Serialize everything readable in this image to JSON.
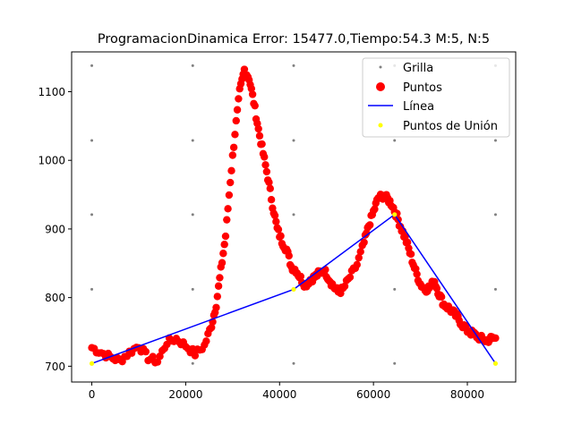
{
  "chart_data": {
    "type": "scatter",
    "title": "ProgramacionDinamica Error: 15477.0,Tiempo:54.3  M:5, N:5",
    "xlabel": "",
    "ylabel": "",
    "xlim": [
      -4300,
      90300
    ],
    "ylim": [
      677,
      1158
    ],
    "xticks": [
      0,
      20000,
      40000,
      60000,
      80000
    ],
    "xtick_labels": [
      "0",
      "20000",
      "40000",
      "60000",
      "80000"
    ],
    "yticks": [
      700,
      800,
      900,
      1000,
      1100
    ],
    "ytick_labels": [
      "700",
      "800",
      "900",
      "1000",
      "1100"
    ],
    "legend": {
      "placement": "top-right",
      "entries": [
        "Grilla",
        "Puntos",
        "Línea",
        "Puntos de Unión"
      ]
    },
    "colors": {
      "grid": "#808080",
      "points": "#ff0000",
      "line": "#0000ff",
      "union": "#ffff00"
    },
    "grilla": {
      "x": [
        0,
        21500,
        43000,
        64500,
        86000
      ],
      "y": [
        704,
        812,
        921,
        1029,
        1138
      ]
    },
    "puntos_curve": [
      [
        0,
        727
      ],
      [
        2000,
        720
      ],
      [
        4000,
        713
      ],
      [
        6000,
        708
      ],
      [
        8000,
        720
      ],
      [
        10000,
        730
      ],
      [
        12000,
        712
      ],
      [
        14000,
        707
      ],
      [
        16000,
        735
      ],
      [
        18000,
        740
      ],
      [
        20000,
        730
      ],
      [
        22000,
        718
      ],
      [
        24000,
        730
      ],
      [
        25500,
        760
      ],
      [
        26500,
        790
      ],
      [
        27500,
        840
      ],
      [
        28500,
        890
      ],
      [
        29500,
        970
      ],
      [
        30500,
        1040
      ],
      [
        31500,
        1100
      ],
      [
        32500,
        1132
      ],
      [
        33500,
        1120
      ],
      [
        34500,
        1085
      ],
      [
        35500,
        1045
      ],
      [
        36500,
        1010
      ],
      [
        37500,
        975
      ],
      [
        38500,
        935
      ],
      [
        39500,
        900
      ],
      [
        40500,
        882
      ],
      [
        41500,
        870
      ],
      [
        42500,
        845
      ],
      [
        43500,
        840
      ],
      [
        44500,
        828
      ],
      [
        45500,
        818
      ],
      [
        46500,
        826
      ],
      [
        47500,
        830
      ],
      [
        48500,
        836
      ],
      [
        49500,
        840
      ],
      [
        50500,
        828
      ],
      [
        51500,
        816
      ],
      [
        52500,
        808
      ],
      [
        53500,
        812
      ],
      [
        55000,
        830
      ],
      [
        56500,
        848
      ],
      [
        58000,
        880
      ],
      [
        59000,
        905
      ],
      [
        60000,
        925
      ],
      [
        61000,
        945
      ],
      [
        62000,
        948
      ],
      [
        63000,
        944
      ],
      [
        64000,
        935
      ],
      [
        65000,
        918
      ],
      [
        66000,
        900
      ],
      [
        67000,
        882
      ],
      [
        68000,
        860
      ],
      [
        69000,
        838
      ],
      [
        70000,
        820
      ],
      [
        71000,
        812
      ],
      [
        72000,
        815
      ],
      [
        73000,
        824
      ],
      [
        74000,
        805
      ],
      [
        75000,
        790
      ],
      [
        76000,
        785
      ],
      [
        77000,
        778
      ],
      [
        78000,
        770
      ],
      [
        79000,
        760
      ],
      [
        80000,
        752
      ],
      [
        81000,
        748
      ],
      [
        82000,
        744
      ],
      [
        83000,
        740
      ],
      [
        84000,
        737
      ],
      [
        85000,
        740
      ],
      [
        86000,
        741
      ]
    ],
    "linea": [
      [
        0,
        704
      ],
      [
        43000,
        812
      ],
      [
        64500,
        921
      ],
      [
        86000,
        704
      ]
    ],
    "puntos_de_union": [
      [
        0,
        704
      ],
      [
        43000,
        812
      ],
      [
        64500,
        921
      ],
      [
        86000,
        704
      ]
    ]
  }
}
